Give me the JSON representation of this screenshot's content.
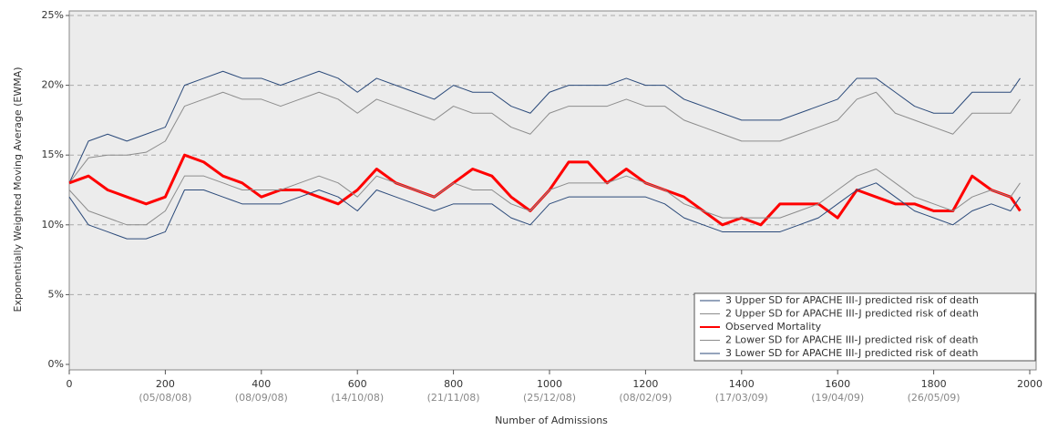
{
  "chart_data": {
    "type": "line",
    "y_label": "Exponentially Weighted Moving Average (EWMA)",
    "x_label": "Number of Admissions",
    "x": [
      0,
      40,
      80,
      120,
      160,
      200,
      240,
      280,
      320,
      360,
      400,
      440,
      480,
      520,
      560,
      600,
      640,
      680,
      720,
      760,
      800,
      840,
      880,
      920,
      960,
      1000,
      1040,
      1080,
      1120,
      1160,
      1200,
      1240,
      1280,
      1320,
      1360,
      1400,
      1440,
      1480,
      1520,
      1560,
      1600,
      1640,
      1680,
      1720,
      1760,
      1800,
      1840,
      1880,
      1920,
      1960,
      1980
    ],
    "series": [
      {
        "name": "3 Upper SD for APACHE III-J predicted risk of death",
        "color": "#2b4a7a",
        "width": 1,
        "values": [
          13,
          16,
          16.5,
          16,
          16.5,
          17,
          20,
          20.5,
          21,
          20.5,
          20.5,
          20,
          20.5,
          21,
          20.5,
          19.5,
          20.5,
          20,
          19.5,
          19,
          20,
          19.5,
          19.5,
          18.5,
          18,
          19.5,
          20,
          20,
          20,
          20.5,
          20,
          20,
          19,
          18.5,
          18,
          17.5,
          17.5,
          17.5,
          18,
          18.5,
          19,
          20.5,
          20.5,
          19.5,
          18.5,
          18,
          18,
          19.5,
          19.5,
          19.5,
          20.5
        ]
      },
      {
        "name": "2 Upper SD for APACHE III-J predicted risk of death",
        "color": "#8c8c8c",
        "width": 1,
        "values": [
          13,
          14.8,
          15,
          15,
          15.2,
          16,
          18.5,
          19,
          19.5,
          19,
          19,
          18.5,
          19,
          19.5,
          19,
          18,
          19,
          18.5,
          18,
          17.5,
          18.5,
          18,
          18,
          17,
          16.5,
          18,
          18.5,
          18.5,
          18.5,
          19,
          18.5,
          18.5,
          17.5,
          17,
          16.5,
          16,
          16,
          16,
          16.5,
          17,
          17.5,
          19,
          19.5,
          18,
          17.5,
          17,
          16.5,
          18,
          18,
          18,
          19
        ]
      },
      {
        "name": "Observed Mortality",
        "color": "#ff0000",
        "width": 3,
        "values": [
          13,
          13.5,
          12.5,
          12,
          11.5,
          12,
          15,
          14.5,
          13.5,
          13,
          12,
          12.5,
          12.5,
          12,
          11.5,
          12.5,
          14,
          13,
          12.5,
          12,
          13,
          14,
          13.5,
          12,
          11,
          12.5,
          14.5,
          14.5,
          13,
          14,
          13,
          12.5,
          12,
          11,
          10,
          10.5,
          10,
          11.5,
          11.5,
          11.5,
          10.5,
          12.5,
          12,
          11.5,
          11.5,
          11,
          11,
          13.5,
          12.5,
          12,
          11
        ]
      },
      {
        "name": "2 Lower SD for APACHE III-J predicted risk of death",
        "color": "#8c8c8c",
        "width": 1,
        "values": [
          12.5,
          11,
          10.5,
          10,
          10,
          11,
          13.5,
          13.5,
          13,
          12.5,
          12.5,
          12.5,
          13,
          13.5,
          13,
          12,
          13.5,
          13,
          12.5,
          12,
          13,
          12.5,
          12.5,
          11.5,
          11,
          12.5,
          13,
          13,
          13,
          13.5,
          13,
          12.5,
          11.5,
          11,
          10.5,
          10.5,
          10.5,
          10.5,
          11,
          11.5,
          12.5,
          13.5,
          14,
          13,
          12,
          11.5,
          11,
          12,
          12.5,
          12,
          13
        ]
      },
      {
        "name": "3 Lower SD for APACHE III-J predicted risk of death",
        "color": "#2b4a7a",
        "width": 1,
        "values": [
          12,
          10,
          9.5,
          9,
          9,
          9.5,
          12.5,
          12.5,
          12,
          11.5,
          11.5,
          11.5,
          12,
          12.5,
          12,
          11,
          12.5,
          12,
          11.5,
          11,
          11.5,
          11.5,
          11.5,
          10.5,
          10,
          11.5,
          12,
          12,
          12,
          12,
          12,
          11.5,
          10.5,
          10,
          9.5,
          9.5,
          9.5,
          9.5,
          10,
          10.5,
          11.5,
          12.5,
          13,
          12,
          11,
          10.5,
          10,
          11,
          11.5,
          11,
          12
        ]
      }
    ],
    "xlim": [
      0,
      2000
    ],
    "xticks": [
      0,
      200,
      400,
      600,
      800,
      1000,
      1200,
      1400,
      1600,
      1800,
      2000
    ],
    "xtick_sublabels": [
      {
        "value": 200,
        "label": "(05/08/08)"
      },
      {
        "value": 400,
        "label": "(08/09/08)"
      },
      {
        "value": 600,
        "label": "(14/10/08)"
      },
      {
        "value": 800,
        "label": "(21/11/08)"
      },
      {
        "value": 1000,
        "label": "(25/12/08)"
      },
      {
        "value": 1200,
        "label": "(08/02/09)"
      },
      {
        "value": 1400,
        "label": "(17/03/09)"
      },
      {
        "value": 1600,
        "label": "(19/04/09)"
      },
      {
        "value": 1800,
        "label": "(26/05/09)"
      }
    ],
    "ylim": [
      0,
      25
    ],
    "yticks": [
      {
        "value": 0,
        "label": "0%"
      },
      {
        "value": 5,
        "label": "5%"
      },
      {
        "value": 10,
        "label": "10%"
      },
      {
        "value": 15,
        "label": "15%"
      },
      {
        "value": 20,
        "label": "20%"
      },
      {
        "value": 25,
        "label": "25%"
      }
    ],
    "grid": true,
    "legend": "lower-right"
  }
}
